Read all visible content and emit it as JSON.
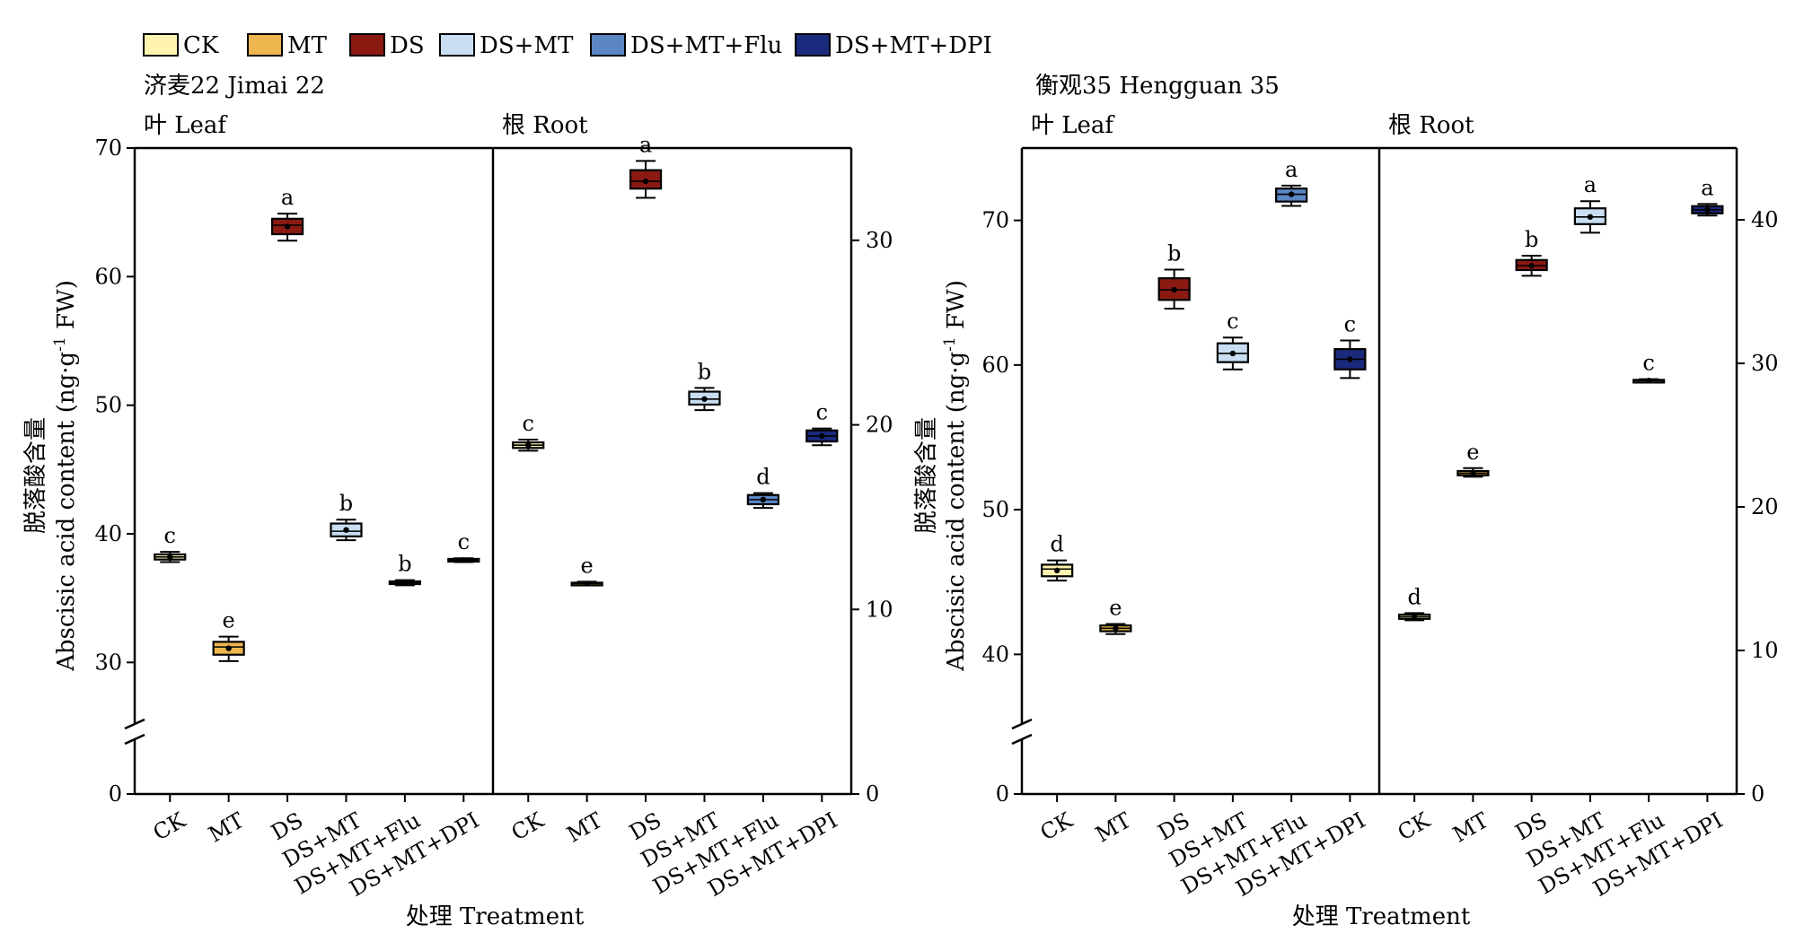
{
  "legend": {
    "items": [
      {
        "label": "CK",
        "color": "#FFF3B0"
      },
      {
        "label": "MT",
        "color": "#EDB64F"
      },
      {
        "label": "DS",
        "color": "#8B1A12"
      },
      {
        "label": "DS+MT",
        "color": "#C9DEF2"
      },
      {
        "label": "DS+MT+Flu",
        "color": "#5B86C4"
      },
      {
        "label": "DS+MT+DPI",
        "color": "#1A2A7C"
      }
    ]
  },
  "xlabel": "处理 Treatment",
  "ylabel_cn": "脱落酸含量",
  "ylabel_en_prefix": "Abscisic acid content (ng·g",
  "ylabel_en_sup": "-1",
  "ylabel_en_suffix": " FW)",
  "chart_data": [
    {
      "type": "box",
      "cultivar": "济麦22 Jimai 22",
      "axes": {
        "left_ticks": [
          "0",
          "30",
          "40",
          "50",
          "60",
          "70"
        ],
        "right_ticks": [
          "0",
          "10",
          "20",
          "30"
        ],
        "left_break": [
          0,
          25
        ],
        "left_ylim": [
          25,
          70
        ],
        "right_ylim": [
          0,
          35
        ]
      },
      "panels": [
        {
          "label": "叶 Leaf",
          "axis": "left",
          "categories": [
            "CK",
            "MT",
            "DS",
            "DS+MT",
            "DS+MT+Flu",
            "DS+MT+DPI"
          ],
          "boxes": [
            {
              "min": 37.8,
              "q1": 38.0,
              "median": 38.2,
              "q3": 38.4,
              "max": 38.6,
              "mean": 38.2,
              "letter": "c"
            },
            {
              "min": 30.1,
              "q1": 30.6,
              "median": 31.2,
              "q3": 31.6,
              "max": 32.0,
              "mean": 31.1,
              "letter": "e"
            },
            {
              "min": 62.8,
              "q1": 63.3,
              "median": 64.0,
              "q3": 64.5,
              "max": 64.9,
              "mean": 63.9,
              "letter": "a"
            },
            {
              "min": 39.5,
              "q1": 39.8,
              "median": 40.2,
              "q3": 40.8,
              "max": 41.1,
              "mean": 40.3,
              "letter": "b"
            },
            {
              "min": 36.0,
              "q1": 36.1,
              "median": 36.2,
              "q3": 36.3,
              "max": 36.4,
              "mean": 36.2,
              "letter": "b"
            },
            {
              "min": 37.8,
              "q1": 37.85,
              "median": 37.95,
              "q3": 38.05,
              "max": 38.1,
              "mean": 37.95,
              "letter": "c"
            }
          ]
        },
        {
          "label": "根 Root",
          "axis": "right",
          "categories": [
            "CK",
            "MT",
            "DS",
            "DS+MT",
            "DS+MT+Flu",
            "DS+MT+DPI"
          ],
          "boxes": [
            {
              "min": 18.6,
              "q1": 18.75,
              "median": 18.9,
              "q3": 19.05,
              "max": 19.2,
              "mean": 18.9,
              "letter": "c"
            },
            {
              "min": 11.3,
              "q1": 11.35,
              "median": 11.4,
              "q3": 11.45,
              "max": 11.5,
              "mean": 11.4,
              "letter": "e"
            },
            {
              "min": 32.3,
              "q1": 32.8,
              "median": 33.2,
              "q3": 33.8,
              "max": 34.3,
              "mean": 33.2,
              "letter": "a"
            },
            {
              "min": 20.8,
              "q1": 21.1,
              "median": 21.4,
              "q3": 21.8,
              "max": 22.0,
              "mean": 21.4,
              "letter": "b"
            },
            {
              "min": 15.5,
              "q1": 15.7,
              "median": 15.95,
              "q3": 16.2,
              "max": 16.3,
              "mean": 15.95,
              "letter": "d"
            },
            {
              "min": 18.9,
              "q1": 19.1,
              "median": 19.4,
              "q3": 19.7,
              "max": 19.8,
              "mean": 19.4,
              "letter": "c"
            }
          ]
        }
      ]
    },
    {
      "type": "box",
      "cultivar": "衡观35 Hengguan 35",
      "axes": {
        "left_ticks": [
          "0",
          "40",
          "50",
          "60",
          "70"
        ],
        "right_ticks": [
          "0",
          "10",
          "20",
          "30",
          "40"
        ],
        "left_break": [
          0,
          35
        ],
        "left_ylim": [
          35,
          75
        ],
        "right_ylim": [
          0,
          45
        ]
      },
      "panels": [
        {
          "label": "叶 Leaf",
          "axis": "left",
          "categories": [
            "CK",
            "MT",
            "DS",
            "DS+MT",
            "DS+MT+Flu",
            "DS+MT+DPI"
          ],
          "boxes": [
            {
              "min": 45.1,
              "q1": 45.4,
              "median": 45.9,
              "q3": 46.2,
              "max": 46.5,
              "mean": 45.8,
              "letter": "d"
            },
            {
              "min": 41.4,
              "q1": 41.6,
              "median": 41.8,
              "q3": 42.0,
              "max": 42.1,
              "mean": 41.8,
              "letter": "e"
            },
            {
              "min": 63.9,
              "q1": 64.5,
              "median": 65.2,
              "q3": 66.0,
              "max": 66.6,
              "mean": 65.2,
              "letter": "b"
            },
            {
              "min": 59.7,
              "q1": 60.2,
              "median": 60.8,
              "q3": 61.5,
              "max": 61.9,
              "mean": 60.8,
              "letter": "c"
            },
            {
              "min": 71.0,
              "q1": 71.3,
              "median": 71.8,
              "q3": 72.2,
              "max": 72.4,
              "mean": 71.8,
              "letter": "a"
            },
            {
              "min": 59.1,
              "q1": 59.7,
              "median": 60.4,
              "q3": 61.1,
              "max": 61.7,
              "mean": 60.4,
              "letter": "c"
            }
          ]
        },
        {
          "label": "根 Root",
          "axis": "right",
          "categories": [
            "CK",
            "MT",
            "DS",
            "DS+MT",
            "DS+MT+Flu",
            "DS+MT+DPI"
          ],
          "boxes": [
            {
              "min": 12.1,
              "q1": 12.2,
              "median": 12.35,
              "q3": 12.5,
              "max": 12.6,
              "mean": 12.35,
              "letter": "d"
            },
            {
              "min": 22.1,
              "q1": 22.2,
              "median": 22.35,
              "q3": 22.5,
              "max": 22.7,
              "mean": 22.35,
              "letter": "e"
            },
            {
              "min": 36.1,
              "q1": 36.5,
              "median": 36.8,
              "q3": 37.2,
              "max": 37.5,
              "mean": 36.8,
              "letter": "b"
            },
            {
              "min": 39.1,
              "q1": 39.7,
              "median": 40.2,
              "q3": 40.8,
              "max": 41.3,
              "mean": 40.2,
              "letter": "a"
            },
            {
              "min": 28.7,
              "q1": 28.75,
              "median": 28.8,
              "q3": 28.85,
              "max": 28.9,
              "mean": 28.8,
              "letter": "c"
            },
            {
              "min": 40.3,
              "q1": 40.45,
              "median": 40.7,
              "q3": 40.95,
              "max": 41.1,
              "mean": 40.7,
              "letter": "a"
            }
          ]
        }
      ]
    }
  ]
}
